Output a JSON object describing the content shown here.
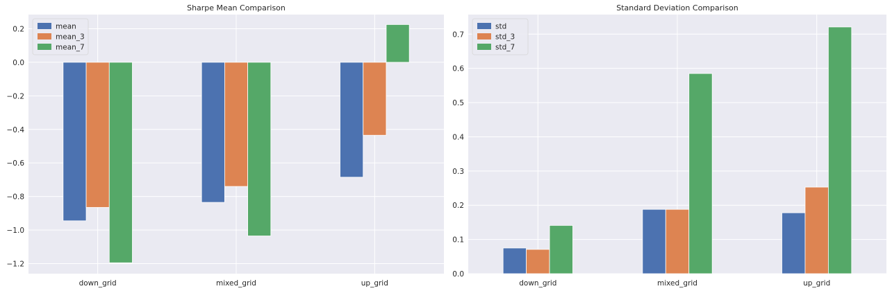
{
  "chart_data": [
    {
      "type": "bar",
      "title": "Sharpe Mean Comparison",
      "xlabel": "",
      "ylabel": "",
      "categories": [
        "down_grid",
        "mixed_grid",
        "up_grid"
      ],
      "series": [
        {
          "name": "mean",
          "values": [
            -0.945,
            -0.835,
            -0.685
          ],
          "color": "#4c72b0"
        },
        {
          "name": "mean_3",
          "values": [
            -0.865,
            -0.74,
            -0.435
          ],
          "color": "#dd8452"
        },
        {
          "name": "mean_7",
          "values": [
            -1.195,
            -1.035,
            0.225
          ],
          "color": "#55a868"
        }
      ],
      "ylim": [
        -1.26,
        0.2845
      ],
      "yticks": [
        0.2,
        0.0,
        -0.2,
        -0.4,
        -0.6,
        -0.8,
        -1.0,
        -1.2
      ],
      "ytick_labels": [
        "0.2",
        "0.0",
        "−0.2",
        "−0.4",
        "−0.6",
        "−0.8",
        "−1.0",
        "−1.2"
      ],
      "grid": true,
      "legend_position": "top-left",
      "background": "#eaeaf2"
    },
    {
      "type": "bar",
      "title": "Standard Deviation Comparison",
      "xlabel": "",
      "ylabel": "",
      "categories": [
        "down_grid",
        "mixed_grid",
        "up_grid"
      ],
      "series": [
        {
          "name": "std",
          "values": [
            0.075,
            0.188,
            0.178
          ],
          "color": "#4c72b0"
        },
        {
          "name": "std_3",
          "values": [
            0.071,
            0.188,
            0.253
          ],
          "color": "#dd8452"
        },
        {
          "name": "std_7",
          "values": [
            0.141,
            0.585,
            0.721
          ],
          "color": "#55a868"
        }
      ],
      "ylim": [
        0.0,
        0.7573
      ],
      "yticks": [
        0.0,
        0.1,
        0.2,
        0.3,
        0.4,
        0.5,
        0.6,
        0.7
      ],
      "ytick_labels": [
        "0.0",
        "0.1",
        "0.2",
        "0.3",
        "0.4",
        "0.5",
        "0.6",
        "0.7"
      ],
      "grid": true,
      "legend_position": "top-left",
      "background": "#eaeaf2"
    }
  ]
}
